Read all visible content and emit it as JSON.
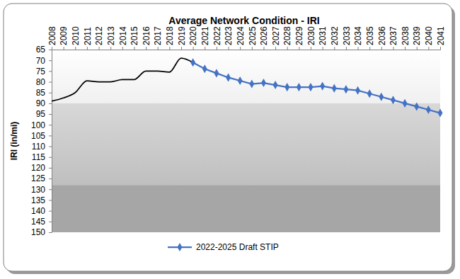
{
  "chart_data": {
    "type": "line",
    "title": "Average Network Condition - IRI",
    "y_label": "IRI (in/mi)",
    "categories": [
      "2008",
      "2009",
      "2010",
      "2011",
      "2012",
      "2013",
      "2014",
      "2015",
      "2016",
      "2017",
      "2018",
      "2019",
      "2020",
      "2021",
      "2022",
      "2023",
      "2024",
      "2025",
      "2026",
      "2027",
      "2028",
      "2029",
      "2030",
      "2031",
      "2032",
      "2033",
      "2034",
      "2035",
      "2036",
      "2037",
      "2038",
      "2039",
      "2040",
      "2041"
    ],
    "series": [
      {
        "color": "#000000",
        "marker": "none",
        "line_style": "smooth",
        "values": [
          89,
          87.5,
          85,
          79.5,
          80,
          80,
          79,
          79,
          75,
          75,
          75.5,
          69,
          71,
          null,
          null,
          null,
          null,
          null,
          null,
          null,
          null,
          null,
          null,
          null,
          null,
          null,
          null,
          null,
          null,
          null,
          null,
          null,
          null,
          null
        ]
      },
      {
        "name": "2022-2025 Draft STIP",
        "color": "#4472C4",
        "marker": "diamond",
        "line_style": "solid",
        "values": [
          null,
          null,
          null,
          null,
          null,
          null,
          null,
          null,
          null,
          null,
          null,
          null,
          71,
          74,
          76,
          78,
          79.5,
          81,
          80.5,
          81.5,
          82.5,
          82.5,
          82.5,
          82,
          83,
          83.5,
          84,
          85.5,
          87,
          88.5,
          90,
          91.5,
          93,
          94.5
        ]
      }
    ],
    "bands": [
      {
        "from": 65,
        "to": 90,
        "color": "#f0f0f0"
      },
      {
        "from": 90,
        "to": 128,
        "color": "#bfbfbf"
      },
      {
        "from": 128,
        "to": 150,
        "color": "#a6a6a6"
      }
    ],
    "ylim": [
      150,
      65
    ],
    "yticks": [
      65,
      70,
      75,
      80,
      85,
      90,
      95,
      100,
      105,
      110,
      115,
      120,
      125,
      130,
      135,
      140,
      145,
      150
    ],
    "grid": false,
    "legend": "bottom"
  }
}
